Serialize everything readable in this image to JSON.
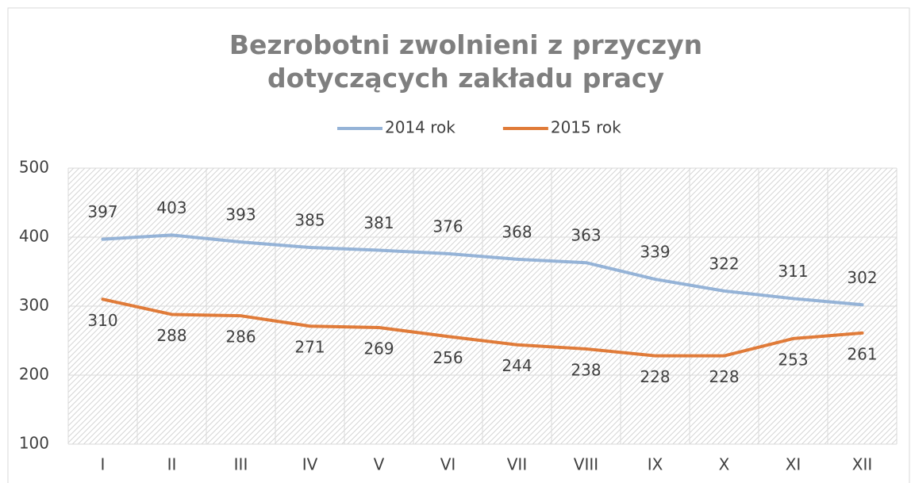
{
  "chart_data": {
    "type": "line",
    "title": "Bezrobotni zwolnieni z przyczyn dotyczących zakładu pracy",
    "categories": [
      "I",
      "II",
      "III",
      "IV",
      "V",
      "VI",
      "VII",
      "VIII",
      "IX",
      "X",
      "XI",
      "XII"
    ],
    "series": [
      {
        "name": "2014 rok",
        "color": "#95b3d7",
        "values": [
          397,
          403,
          393,
          385,
          381,
          376,
          368,
          363,
          339,
          322,
          311,
          302
        ]
      },
      {
        "name": "2015 rok",
        "color": "#e07b39",
        "values": [
          310,
          288,
          286,
          271,
          269,
          256,
          244,
          238,
          228,
          228,
          253,
          261
        ]
      }
    ],
    "ylim": [
      100,
      500
    ],
    "yticks": [
      100,
      200,
      300,
      400,
      500
    ],
    "grid": true,
    "legend": "top"
  }
}
